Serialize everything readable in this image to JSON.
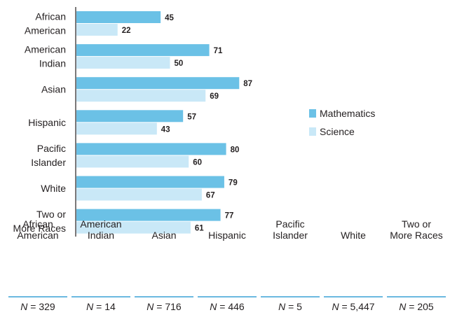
{
  "chart_data": {
    "type": "bar",
    "orientation": "horizontal",
    "categories": [
      [
        "African",
        "American"
      ],
      [
        "American",
        "Indian"
      ],
      [
        "Asian"
      ],
      [
        "Hispanic"
      ],
      [
        "Pacific",
        "Islander"
      ],
      [
        "White"
      ],
      [
        "Two or",
        "More Races"
      ]
    ],
    "series": [
      {
        "name": "Mathematics",
        "color": "#6bc1e6",
        "values": [
          45,
          71,
          87,
          57,
          80,
          79,
          77
        ]
      },
      {
        "name": "Science",
        "color": "#c9e8f7",
        "values": [
          22,
          50,
          69,
          43,
          60,
          67,
          61
        ]
      }
    ],
    "xlim": [
      0,
      100
    ],
    "grid": false,
    "legend_position": "right"
  },
  "n_table": {
    "axis_color": "#6bb9e0",
    "columns": [
      {
        "head": [
          "African",
          "American"
        ],
        "n_label": "N",
        "n_value": " = 329"
      },
      {
        "head": [
          "American",
          "Indian"
        ],
        "n_label": "N",
        "n_value": " = 14"
      },
      {
        "head": [
          "Asian"
        ],
        "n_label": "N",
        "n_value": " = 716"
      },
      {
        "head": [
          "Hispanic"
        ],
        "n_label": "N",
        "n_value": " = 446"
      },
      {
        "head": [
          "Pacific",
          "Islander"
        ],
        "n_label": "N",
        "n_value": " = 5"
      },
      {
        "head": [
          "White"
        ],
        "n_label": "N",
        "n_value": " = 5,447"
      },
      {
        "head": [
          "Two or",
          "More Races"
        ],
        "n_label": "N",
        "n_value": " = 205"
      }
    ]
  }
}
